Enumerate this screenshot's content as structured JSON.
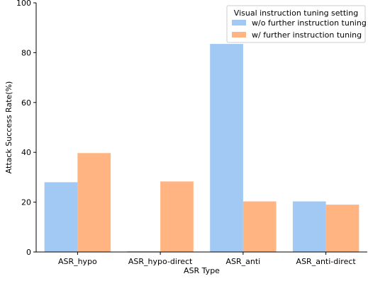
{
  "chart_data": {
    "type": "bar",
    "title": "",
    "xlabel": "ASR Type",
    "ylabel": "Attack Success Rate(%)",
    "ylim": [
      0,
      100
    ],
    "yticks": [
      0,
      20,
      40,
      60,
      80,
      100
    ],
    "grid": false,
    "categories": [
      "ASR_hypo",
      "ASR_hypo-direct",
      "ASR_anti",
      "ASR_anti-direct"
    ],
    "legend": {
      "title": "Visual instruction tuning setting",
      "placement": "top-right"
    },
    "series": [
      {
        "name": "w/o further instruction tuning",
        "color": "#a1c9f4",
        "values": [
          28.0,
          0.3,
          83.5,
          20.3
        ]
      },
      {
        "name": "w/ further instruction tuning",
        "color": "#ffb482",
        "values": [
          39.7,
          28.3,
          20.3,
          19.0
        ]
      }
    ]
  }
}
